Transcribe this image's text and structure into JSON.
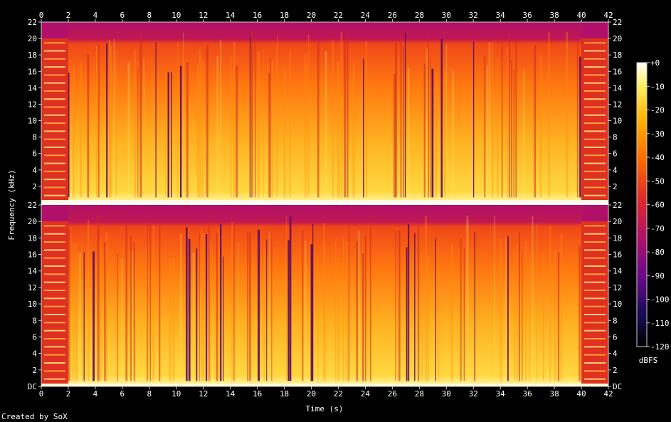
{
  "chart_data": {
    "type": "heatmap",
    "xlabel": "Time (s)",
    "ylabel": "Frequency (kHz)",
    "x_ticks": [
      0,
      2,
      4,
      6,
      8,
      10,
      12,
      14,
      16,
      18,
      20,
      22,
      24,
      26,
      28,
      30,
      32,
      34,
      36,
      38,
      40,
      42
    ],
    "xlim": [
      0,
      42
    ],
    "channels": 2,
    "y_ticks_top": [
      "22",
      "20",
      "18",
      "16",
      "14",
      "12",
      "10",
      "8",
      "6",
      "4",
      "2"
    ],
    "y_ticks_bottom": [
      "22",
      "20",
      "18",
      "16",
      "14",
      "12",
      "10",
      "8",
      "6",
      "4",
      "2",
      "DC"
    ],
    "ylim": [
      0,
      22
    ],
    "colorbar": {
      "label": "dBFS",
      "ticks": [
        "+0",
        "-10",
        "-20",
        "-30",
        "-40",
        "-50",
        "-60",
        "-70",
        "-80",
        "-90",
        "-100",
        "-110",
        "-120"
      ],
      "range": [
        -120,
        0
      ],
      "colors": [
        "#000000",
        "#1a0a58",
        "#6a0a8a",
        "#b0106a",
        "#e02a2a",
        "#ff6a00",
        "#ffb400",
        "#fff060",
        "#ffffff"
      ]
    },
    "description_regions": {
      "quiet_intro_s": [
        0,
        2
      ],
      "quiet_outro_s": [
        40,
        42
      ]
    }
  },
  "footer": {
    "credit": "Created by SoX"
  }
}
